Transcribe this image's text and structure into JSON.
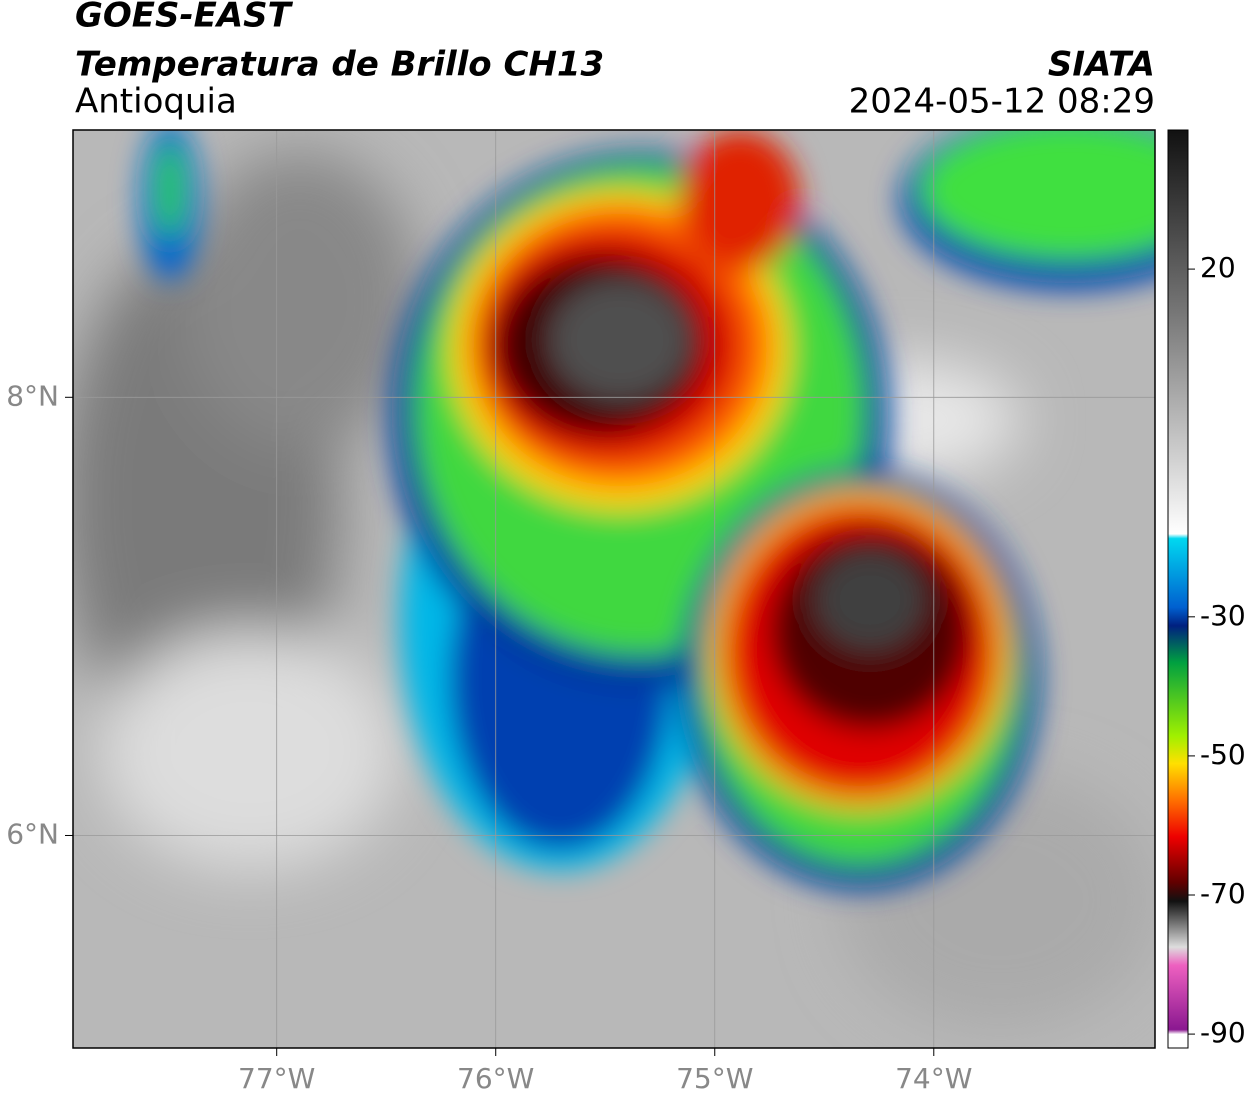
{
  "header": {
    "title": "GOES-EAST",
    "subtitle": "Temperatura de Brillo CH13",
    "region": "Antioquia",
    "source": "SIATA",
    "datetime": "2024-05-12 08:29"
  },
  "map": {
    "xlim": [
      -77.93,
      -72.99
    ],
    "ylim": [
      5.03,
      9.22
    ],
    "xticks": [
      {
        "value": -77,
        "label": "77°W"
      },
      {
        "value": -76,
        "label": "76°W"
      },
      {
        "value": -75,
        "label": "75°W"
      },
      {
        "value": -74,
        "label": "74°W"
      }
    ],
    "yticks": [
      {
        "value": 8,
        "label": "8°N"
      },
      {
        "value": 6,
        "label": "6°N"
      }
    ],
    "grid": true
  },
  "colorbar": {
    "clim": [
      -92,
      40
    ],
    "ticks": [
      20,
      -30,
      -50,
      -70,
      -90
    ]
  }
}
